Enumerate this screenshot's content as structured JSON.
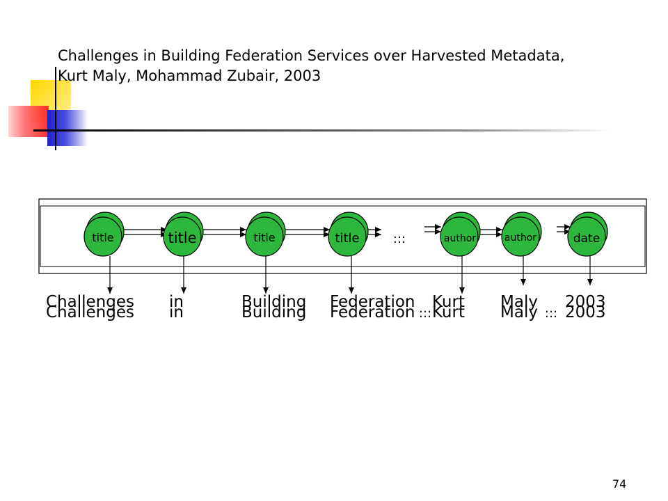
{
  "slide": {
    "title_line1": "Challenges in Building Federation Services over Harvested Metadata,",
    "title_line2": "Kurt Maly, Mohammad Zubair, 2003",
    "page_number": "74"
  },
  "diagram": {
    "nodes": [
      "title",
      "title",
      "title",
      "title",
      "author",
      "author",
      "date"
    ],
    "node_ellipsis": ":::",
    "words": [
      "Challenges",
      "in",
      "Building",
      "Federation",
      "Kurt",
      "Maly",
      "2003"
    ],
    "word_ellipsis_1": ":::",
    "word_ellipsis_2": ":::"
  }
}
